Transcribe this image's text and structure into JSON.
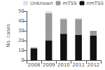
{
  "chart_data": {
    "type": "bar",
    "stacked": true,
    "categories": [
      "2008",
      "2009",
      "2010",
      "2011",
      "2012"
    ],
    "series": [
      {
        "name": "nmTSS",
        "color": "#111111",
        "values": [
          12,
          20,
          27,
          26,
          25
        ]
      },
      {
        "name": "mTSS",
        "color": "#999999",
        "values": [
          1,
          28,
          15,
          16,
          5
        ]
      },
      {
        "name": "Unknown",
        "color": "#e0e0e0",
        "values": [
          0,
          2,
          1,
          1,
          0
        ]
      }
    ],
    "ylabel": "No. cases",
    "ylim": [
      0,
      50
    ],
    "yticks": [
      0,
      10,
      20,
      30,
      40,
      50
    ],
    "grid": false,
    "legend": "upper right"
  }
}
